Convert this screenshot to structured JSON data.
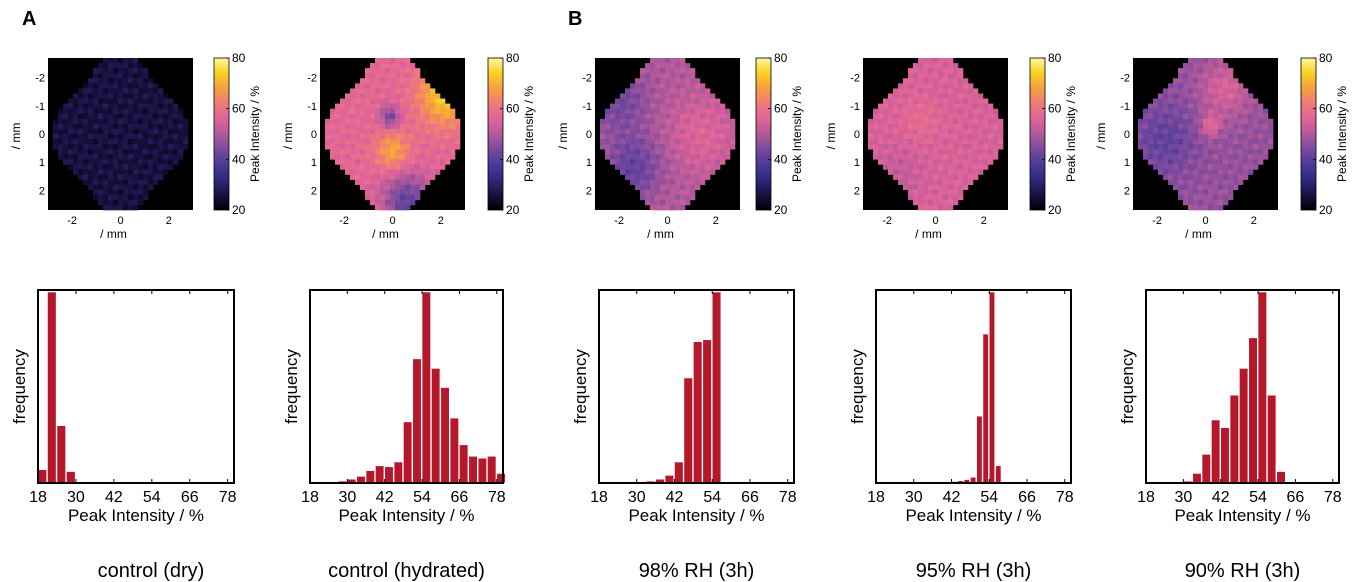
{
  "panel_labels": [
    "A",
    "B"
  ],
  "colors": {
    "bar": "#b5172b",
    "colormap": [
      "#000004",
      "#1a1040",
      "#2d2a7d",
      "#4b3a9a",
      "#7a4a9e",
      "#b25a9a",
      "#e0649a",
      "#f07a7a",
      "#f5a040",
      "#f8d020",
      "#fcf8a0"
    ]
  },
  "chart_data": [
    {
      "type": "heatmap",
      "panel": "A",
      "xlabel": "/ mm",
      "ylabel": "/ mm",
      "x_ticks": [
        "-2",
        "0",
        "2"
      ],
      "y_ticks": [
        "-2",
        "-1",
        "0",
        "1",
        "2"
      ],
      "xlim": [
        -3,
        3
      ],
      "ylim": [
        -2.7,
        2.7
      ],
      "colorbar": {
        "label": "Peak Intensity / %",
        "ticks": [
          "20",
          "40",
          "60",
          "80"
        ],
        "range": [
          20,
          80
        ]
      },
      "field": {
        "base": 26,
        "spots": []
      }
    },
    {
      "type": "bar",
      "panel": "A",
      "xlabel": "Peak Intensity / %",
      "ylabel": "frequency",
      "x_ticks": [
        "18",
        "30",
        "42",
        "54",
        "66",
        "78"
      ],
      "xlim": [
        18,
        80
      ],
      "ylim": [
        0,
        1
      ],
      "bin_width": 3,
      "bin_starts": [
        18,
        21,
        24,
        27
      ],
      "values": [
        0.07,
        1.0,
        0.3,
        0.06
      ],
      "caption": "control (dry)"
    },
    {
      "type": "heatmap",
      "panel": "A",
      "xlabel": "/ mm",
      "ylabel": "/ mm",
      "x_ticks": [
        "-2",
        "0",
        "2"
      ],
      "y_ticks": [
        "-2",
        "-1",
        "0",
        "1",
        "2"
      ],
      "xlim": [
        -3,
        3
      ],
      "ylim": [
        -2.7,
        2.7
      ],
      "colorbar": {
        "label": "Peak Intensity / %",
        "ticks": [
          "20",
          "40",
          "60",
          "80"
        ],
        "range": [
          20,
          80
        ]
      },
      "field": {
        "base": 57,
        "spots": [
          [
            2.2,
            -1.4,
            1.1,
            17
          ],
          [
            0.0,
            0.6,
            0.7,
            12
          ],
          [
            -0.1,
            -0.6,
            0.4,
            -14
          ],
          [
            0.6,
            2.4,
            1.0,
            -16
          ]
        ]
      }
    },
    {
      "type": "bar",
      "panel": "A",
      "xlabel": "Peak Intensity / %",
      "ylabel": "frequency",
      "x_ticks": [
        "18",
        "30",
        "42",
        "54",
        "66",
        "78"
      ],
      "xlim": [
        18,
        80
      ],
      "ylim": [
        0,
        1
      ],
      "bin_width": 3,
      "bin_starts": [
        24,
        27,
        30,
        33,
        36,
        39,
        42,
        45,
        48,
        51,
        54,
        57,
        60,
        63,
        66,
        69,
        72,
        75,
        78
      ],
      "values": [
        0.005,
        0.01,
        0.02,
        0.035,
        0.065,
        0.09,
        0.085,
        0.11,
        0.32,
        0.65,
        1.0,
        0.6,
        0.5,
        0.34,
        0.2,
        0.14,
        0.13,
        0.14,
        0.05
      ],
      "caption": "control (hydrated)"
    },
    {
      "type": "heatmap",
      "panel": "B",
      "xlabel": "/ mm",
      "ylabel": "/ mm",
      "x_ticks": [
        "-2",
        "0",
        "2"
      ],
      "y_ticks": [
        "-2",
        "-1",
        "0",
        "1",
        "2"
      ],
      "xlim": [
        -3,
        3
      ],
      "ylim": [
        -2.7,
        2.7
      ],
      "colorbar": {
        "label": "Peak Intensity / %",
        "ticks": [
          "20",
          "40",
          "60",
          "80"
        ],
        "range": [
          20,
          80
        ]
      },
      "field": {
        "base": 50,
        "spots": [
          [
            -2.0,
            -1.2,
            1.2,
            -7
          ],
          [
            -1.4,
            1.2,
            1.1,
            -9
          ],
          [
            1.5,
            0.0,
            1.4,
            6
          ]
        ]
      }
    },
    {
      "type": "bar",
      "panel": "B",
      "xlabel": "Peak Intensity / %",
      "ylabel": "frequency",
      "x_ticks": [
        "18",
        "30",
        "42",
        "54",
        "66",
        "78"
      ],
      "xlim": [
        18,
        80
      ],
      "ylim": [
        0,
        1
      ],
      "bin_width": 3,
      "bin_starts": [
        30,
        33,
        36,
        39,
        42,
        45,
        48,
        51,
        54
      ],
      "values": [
        0.007,
        0.01,
        0.02,
        0.04,
        0.11,
        0.55,
        0.74,
        0.75,
        1.0
      ],
      "caption": "98% RH (3h)"
    },
    {
      "type": "heatmap",
      "panel": "B",
      "xlabel": "/ mm",
      "ylabel": "/ mm",
      "x_ticks": [
        "-2",
        "0",
        "2"
      ],
      "y_ticks": [
        "-2",
        "-1",
        "0",
        "1",
        "2"
      ],
      "xlim": [
        -3,
        3
      ],
      "ylim": [
        -2.7,
        2.7
      ],
      "colorbar": {
        "label": "Peak Intensity / %",
        "ticks": [
          "20",
          "40",
          "60",
          "80"
        ],
        "range": [
          20,
          80
        ]
      },
      "field": {
        "base": 55,
        "spots": [
          [
            -0.6,
            -0.5,
            0.8,
            3
          ],
          [
            -1.5,
            1.4,
            0.9,
            -3
          ]
        ]
      }
    },
    {
      "type": "bar",
      "panel": "B",
      "xlabel": "Peak Intensity / %",
      "ylabel": "frequency",
      "x_ticks": [
        "18",
        "30",
        "42",
        "54",
        "66",
        "78"
      ],
      "xlim": [
        18,
        80
      ],
      "ylim": [
        0,
        1
      ],
      "bin_width": 2,
      "bin_starts": [
        40,
        42,
        44,
        46,
        48,
        50,
        52,
        54,
        56
      ],
      "values": [
        0.005,
        0.008,
        0.012,
        0.018,
        0.03,
        0.35,
        0.78,
        1.0,
        0.09
      ],
      "caption": "95% RH (3h)"
    },
    {
      "type": "heatmap",
      "panel": "B",
      "xlabel": "/ mm",
      "ylabel": "/ mm",
      "x_ticks": [
        "-2",
        "0",
        "2"
      ],
      "y_ticks": [
        "-2",
        "-1",
        "0",
        "1",
        "2"
      ],
      "xlim": [
        -3,
        3
      ],
      "ylim": [
        -2.7,
        2.7
      ],
      "colorbar": {
        "label": "Peak Intensity / %",
        "ticks": [
          "20",
          "40",
          "60",
          "80"
        ],
        "range": [
          20,
          80
        ]
      },
      "field": {
        "base": 47,
        "spots": [
          [
            -1.7,
            0.2,
            1.3,
            -6
          ],
          [
            0.2,
            -0.3,
            0.4,
            10
          ],
          [
            0.8,
            -1.6,
            1.0,
            8
          ]
        ]
      }
    },
    {
      "type": "bar",
      "panel": "B",
      "xlabel": "Peak Intensity / %",
      "ylabel": "frequency",
      "x_ticks": [
        "18",
        "30",
        "42",
        "54",
        "66",
        "78"
      ],
      "xlim": [
        18,
        80
      ],
      "ylim": [
        0,
        1
      ],
      "bin_width": 3,
      "bin_starts": [
        30,
        33,
        36,
        39,
        42,
        45,
        48,
        51,
        54,
        57,
        60
      ],
      "values": [
        0.01,
        0.05,
        0.15,
        0.33,
        0.29,
        0.46,
        0.6,
        0.76,
        1.0,
        0.46,
        0.06
      ],
      "caption": "90% RH (3h)"
    }
  ]
}
